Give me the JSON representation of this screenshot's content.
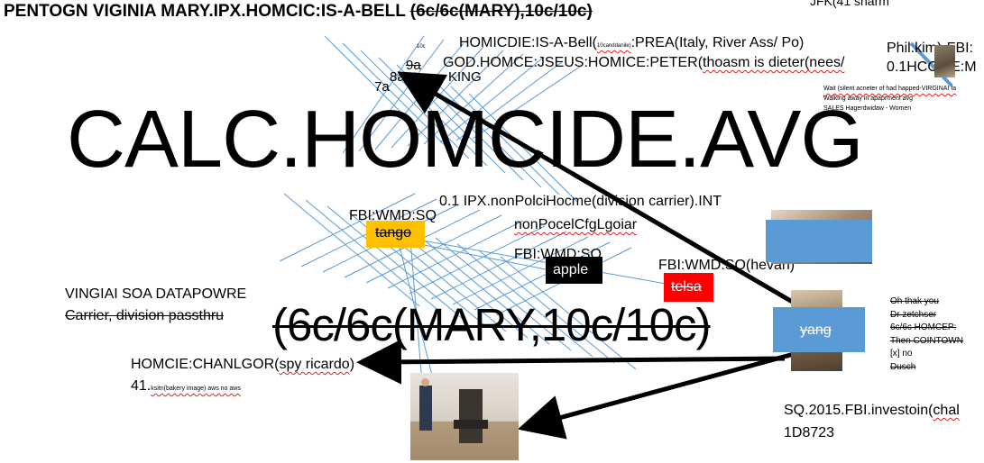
{
  "title": {
    "main": "PENTOGN VIGINIA MARY.IPX.HOMCIC:IS-A-BELL ",
    "struck": "(6c/6c(MARY),10c/10c)"
  },
  "top_right": "JFK(41 sharm",
  "grid_labels": {
    "tiny": "10c",
    "n9a": "9a",
    "n8a": "8a",
    "n7a": "7a",
    "king": "KING"
  },
  "homicide_line": {
    "prefix": "HOMICDIE:IS-A-Bell(",
    "small": "10canddanile)",
    "suffix": ":PREA(Italy, River Ass/ Po)"
  },
  "god_line": {
    "prefix": "GOD.HOMCE:JSEUS:HOMICE:PETER(",
    "struck": "thoasm is dieter(nees/",
    "rest": "nees/..."
  },
  "phil": {
    "line1": "Phil.kim)-FBI:",
    "line2": "0.1HCOME:M"
  },
  "wait_note": {
    "line1": "Wait (silent acneter of had happed-VIRGINAI fa",
    "line2": "Walking away in apaprment avg",
    "line3": "SALES Hagerdwidaw - Women"
  },
  "big_title": "CALC.HOMCIDE.AVG",
  "ipx_line": "0.1 IPX.nonPolciHocme(division carrier).INT",
  "non_police": "nonPocelCfgLgoiar",
  "labels": {
    "fbi_wmd_1": "FBI:WMD:SQ",
    "fbi_wmd_2": "FBI:WMD:SQ",
    "fbi_wmd_3": "FBI:WMD:SQ(hevan)",
    "tango": "tango",
    "apple": "apple",
    "telsa": "telsa",
    "yang": "yang"
  },
  "vingiai": {
    "line1": "VINGIAI SOA DATAPOWRE",
    "line2": "Carrier, division passthru"
  },
  "big_fraction": "(6c/6c(MARY,10c/10c)",
  "homcie_chanlgor": {
    "prefix": "HOMCIE:CHANLGOR(",
    "struck": "spy ricardo",
    "suffix": ")"
  },
  "num41": {
    "main": "41.",
    "small": "ksitn(bakery image) aws no aws"
  },
  "right_list": [
    "Oh thak you",
    "Dr zetchser",
    "6c/6c HOMCEP:",
    "Then COINTOWN",
    "[x] no",
    "Dusch"
  ],
  "sq_line": {
    "line1_prefix": "SQ.2015.FBI.investoin(",
    "line1_rest": "chal",
    "line2": "1D8723"
  },
  "icons": {
    "photo_top_right": "person-photo-icon",
    "photo_mid_right": "person-photo-icon",
    "photo_electric_chair": "electric-chair-photo-icon"
  },
  "colors": {
    "tango_bg": "#ffc000",
    "apple_bg": "#000000",
    "telsa_bg": "#ff0000",
    "blue_box": "#5b9bd5",
    "grid_line": "#5b9bd5"
  }
}
